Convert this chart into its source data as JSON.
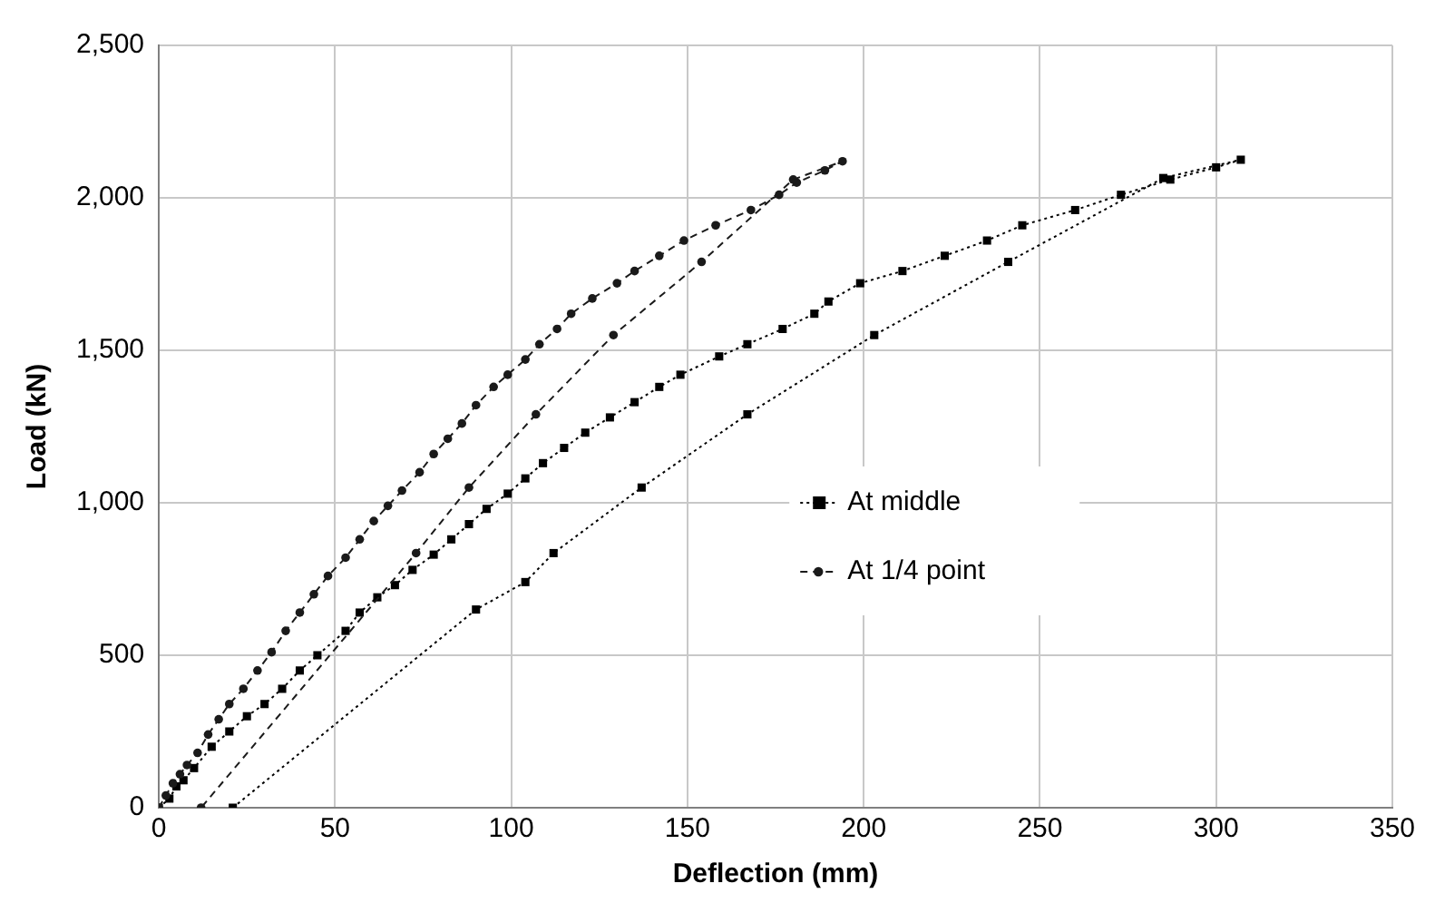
{
  "chart_data": {
    "type": "line",
    "xlabel": "Deflection (mm)",
    "ylabel": "Load (kN)",
    "xlim": [
      0,
      350
    ],
    "xticks": [
      0,
      50,
      100,
      150,
      200,
      250,
      300,
      350
    ],
    "ylim": [
      0,
      2500
    ],
    "yticks": [
      {
        "value": 0,
        "label": "0"
      },
      {
        "value": 500,
        "label": "500"
      },
      {
        "value": 1000,
        "label": "1,000"
      },
      {
        "value": 1500,
        "label": "1,500"
      },
      {
        "value": 2000,
        "label": "2,000"
      },
      {
        "value": 2500,
        "label": "2,500"
      }
    ],
    "grid": true,
    "legend": "right",
    "series": [
      {
        "name": "At middle",
        "color": "#000000",
        "marker": "square",
        "line_style": "dotted",
        "x": [
          0,
          3,
          5,
          7,
          10,
          15,
          20,
          25,
          30,
          35,
          40,
          45,
          53,
          57,
          62,
          67,
          72,
          78,
          83,
          88,
          93,
          99,
          104,
          109,
          115,
          121,
          128,
          135,
          142,
          148,
          159,
          167,
          177,
          186,
          190,
          199,
          211,
          223,
          235,
          245,
          260,
          273,
          287,
          300,
          307,
          285,
          241,
          203,
          167,
          137,
          112,
          104,
          90,
          21
        ],
        "values": [
          0,
          30,
          70,
          90,
          130,
          200,
          250,
          300,
          340,
          390,
          450,
          500,
          580,
          640,
          690,
          730,
          780,
          830,
          880,
          930,
          980,
          1030,
          1080,
          1130,
          1180,
          1230,
          1280,
          1330,
          1380,
          1420,
          1480,
          1520,
          1570,
          1620,
          1660,
          1720,
          1760,
          1810,
          1860,
          1910,
          1960,
          2010,
          2060,
          2100,
          2125,
          2065,
          1790,
          1550,
          1290,
          1050,
          835,
          740,
          650,
          0
        ]
      },
      {
        "name": "At 1/4 point",
        "color": "#1a1a1a",
        "marker": "circle",
        "line_style": "dashed",
        "x": [
          0,
          2,
          4,
          6,
          8,
          11,
          14,
          17,
          20,
          24,
          28,
          32,
          36,
          40,
          44,
          48,
          53,
          57,
          61,
          65,
          69,
          74,
          78,
          82,
          86,
          90,
          95,
          99,
          104,
          108,
          113,
          117,
          123,
          130,
          135,
          142,
          149,
          158,
          168,
          176,
          181,
          189,
          194,
          180,
          154,
          129,
          107,
          88,
          73,
          12
        ],
        "values": [
          0,
          40,
          80,
          110,
          140,
          180,
          240,
          290,
          340,
          390,
          450,
          510,
          580,
          640,
          700,
          760,
          820,
          880,
          940,
          990,
          1040,
          1100,
          1160,
          1210,
          1260,
          1320,
          1380,
          1420,
          1470,
          1520,
          1570,
          1620,
          1670,
          1720,
          1760,
          1810,
          1860,
          1910,
          1960,
          2010,
          2050,
          2090,
          2120,
          2060,
          1790,
          1550,
          1290,
          1050,
          835,
          0
        ]
      }
    ]
  }
}
